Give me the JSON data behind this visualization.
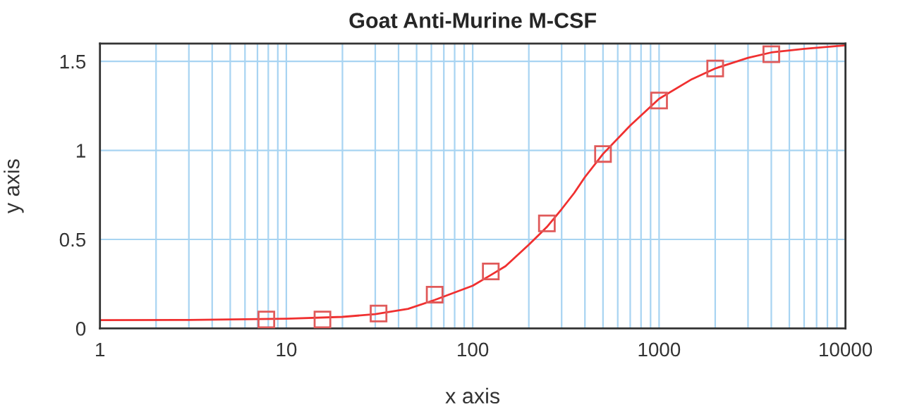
{
  "chart_data": {
    "type": "scatter",
    "title": "Goat Anti-Murine M-CSF",
    "xlabel": "x axis",
    "ylabel": "y axis",
    "log": "x",
    "xlim": [
      1,
      10000
    ],
    "xticks": [
      1,
      10,
      100,
      1000,
      10000
    ],
    "ylim": [
      0,
      1.6
    ],
    "yticks": [
      0,
      0.5,
      1,
      1.5
    ],
    "grid": true,
    "marker": "square",
    "x": [
      7.8125,
      15.625,
      31.25,
      62.5,
      125,
      250,
      500,
      1000,
      2000,
      4000
    ],
    "series": [
      {
        "color": "#e05a5a",
        "values": [
          0.05,
          0.05,
          0.084,
          0.19,
          0.32,
          0.59,
          0.98,
          1.28,
          1.46,
          1.54
        ]
      },
      {
        "type": "line",
        "color": "#f03030",
        "marker": "none",
        "x": [
          1,
          3,
          10,
          20,
          30,
          45,
          62.5,
          100,
          125,
          150,
          200,
          250,
          300,
          350,
          400,
          500,
          700,
          1000,
          1500,
          2000,
          3000,
          4000,
          6000,
          10000
        ],
        "values": [
          0.047,
          0.048,
          0.055,
          0.065,
          0.08,
          0.11,
          0.16,
          0.24,
          0.3,
          0.35,
          0.47,
          0.57,
          0.67,
          0.76,
          0.85,
          0.98,
          1.14,
          1.29,
          1.4,
          1.46,
          1.52,
          1.55,
          1.57,
          1.59
        ]
      }
    ]
  }
}
